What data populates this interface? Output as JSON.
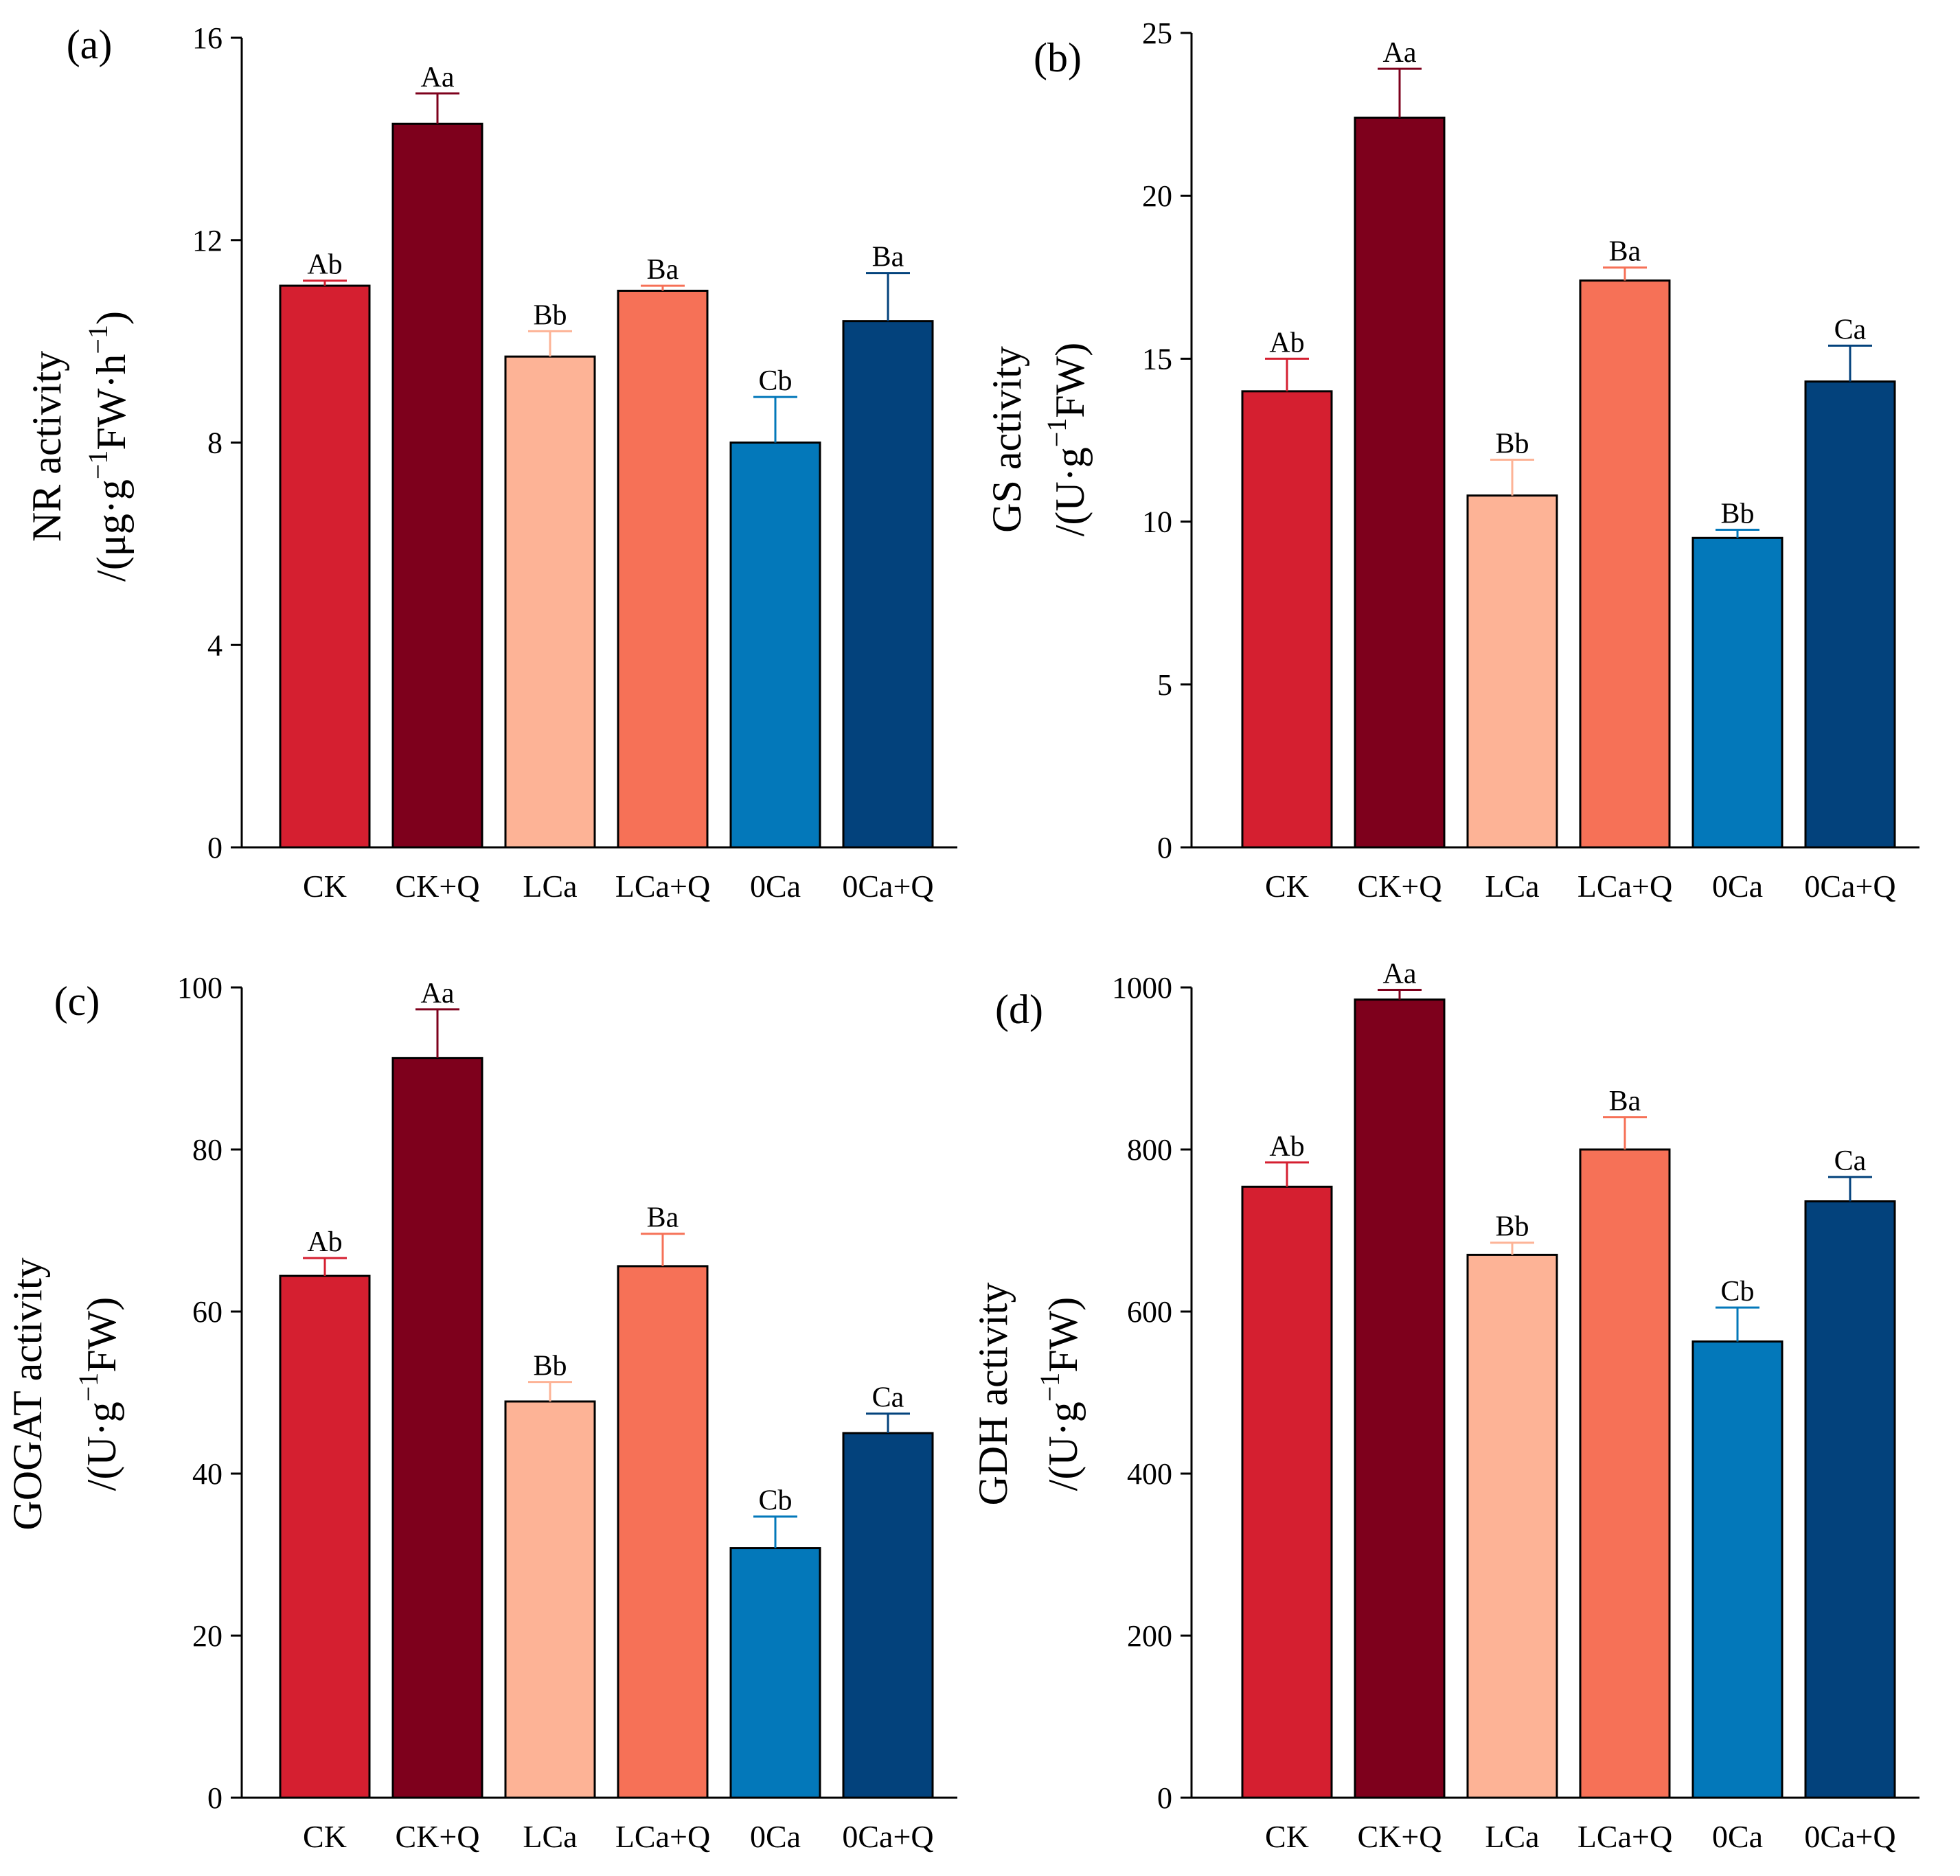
{
  "chart_data": [
    {
      "type": "bar",
      "panel_label": "(a)",
      "ylabel_line1": "NR activity",
      "ylabel_line2": {
        "pre": "/(μg·g",
        "sup1": "−1",
        "mid": "FW·h",
        "sup2": "−1",
        "post": ")"
      },
      "categories": [
        "CK",
        "CK+Q",
        "LCa",
        "LCa+Q",
        "0Ca",
        "0Ca+Q"
      ],
      "values": [
        11.1,
        14.3,
        9.7,
        11.0,
        8.0,
        10.4
      ],
      "errors": [
        0.1,
        0.6,
        0.5,
        0.1,
        0.9,
        0.95
      ],
      "significance": [
        "Ab",
        "Aa",
        "Bb",
        "Ba",
        "Cb",
        "Ba"
      ],
      "ylim": [
        0,
        16
      ],
      "yticks": [
        "0",
        "4",
        "8",
        "12",
        "16"
      ],
      "colors": [
        "#d51f30",
        "#7e001c",
        "#fdb396",
        "#f67157",
        "#0378ba",
        "#03427c"
      ]
    },
    {
      "type": "bar",
      "panel_label": "(b)",
      "ylabel_line1": "GS activity",
      "ylabel_line2": {
        "pre": "/(U·g",
        "sup1": "−1",
        "mid": "FW)",
        "sup2": "",
        "post": ""
      },
      "categories": [
        "CK",
        "CK+Q",
        "LCa",
        "LCa+Q",
        "0Ca",
        "0Ca+Q"
      ],
      "values": [
        14.0,
        22.4,
        10.8,
        17.4,
        9.5,
        14.3
      ],
      "errors": [
        1.0,
        1.5,
        1.1,
        0.4,
        0.25,
        1.1
      ],
      "significance": [
        "Ab",
        "Aa",
        "Bb",
        "Ba",
        "Bb",
        "Ca"
      ],
      "ylim": [
        0,
        25
      ],
      "yticks": [
        "0",
        "5",
        "10",
        "15",
        "20",
        "25"
      ],
      "colors": [
        "#d51f30",
        "#7e001c",
        "#fdb396",
        "#f67157",
        "#0378ba",
        "#03427c"
      ]
    },
    {
      "type": "bar",
      "panel_label": "(c)",
      "ylabel_line1": "GOGAT activity",
      "ylabel_line2": {
        "pre": "/(U·g",
        "sup1": "−1",
        "mid": "FW)",
        "sup2": "",
        "post": ""
      },
      "categories": [
        "CK",
        "CK+Q",
        "LCa",
        "LCa+Q",
        "0Ca",
        "0Ca+Q"
      ],
      "values": [
        64.4,
        91.3,
        48.9,
        65.6,
        30.8,
        45.0
      ],
      "errors": [
        2.2,
        6.0,
        2.4,
        4.0,
        3.9,
        2.4
      ],
      "significance": [
        "Ab",
        "Aa",
        "Bb",
        "Ba",
        "Cb",
        "Ca"
      ],
      "ylim": [
        0,
        100
      ],
      "yticks": [
        "0",
        "20",
        "40",
        "60",
        "80",
        "100"
      ],
      "colors": [
        "#d51f30",
        "#7e001c",
        "#fdb396",
        "#f67157",
        "#0378ba",
        "#03427c"
      ]
    },
    {
      "type": "bar",
      "panel_label": "(d)",
      "ylabel_line1": "GDH activity",
      "ylabel_line2": {
        "pre": "/(U·g",
        "sup1": "−1",
        "mid": "FW)",
        "sup2": "",
        "post": ""
      },
      "categories": [
        "CK",
        "CK+Q",
        "LCa",
        "LCa+Q",
        "0Ca",
        "0Ca+Q"
      ],
      "values": [
        754,
        985,
        670,
        800,
        563,
        736
      ],
      "errors": [
        30,
        12,
        15,
        40,
        42,
        30
      ],
      "significance": [
        "Ab",
        "Aa",
        "Bb",
        "Ba",
        "Cb",
        "Ca"
      ],
      "ylim": [
        0,
        1000
      ],
      "yticks": [
        "0",
        "200",
        "400",
        "600",
        "800",
        "1000"
      ],
      "colors": [
        "#d51f30",
        "#7e001c",
        "#fdb396",
        "#f67157",
        "#0378ba",
        "#03427c"
      ]
    }
  ]
}
